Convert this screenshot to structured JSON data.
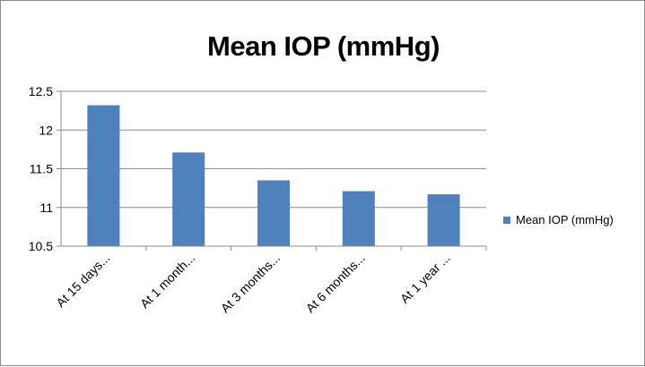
{
  "chart_data": {
    "type": "bar",
    "title": "Mean IOP (mmHg)",
    "xlabel": "",
    "ylabel": "",
    "categories": [
      "At 15 days...",
      "At 1 month...",
      "At 3 months...",
      "At 6 months...",
      "At 1 year ..."
    ],
    "series": [
      {
        "name": "Mean IOP (mmHg)",
        "values": [
          12.32,
          11.71,
          11.35,
          11.21,
          11.17
        ]
      }
    ],
    "ylim": [
      10.5,
      12.5
    ],
    "yticks": [
      "10.5",
      "11",
      "11.5",
      "12",
      "12.5"
    ],
    "grid": true,
    "legend_position": "right",
    "colors": {
      "bar": "#4f81bd",
      "grid": "#8c8c8c"
    }
  }
}
